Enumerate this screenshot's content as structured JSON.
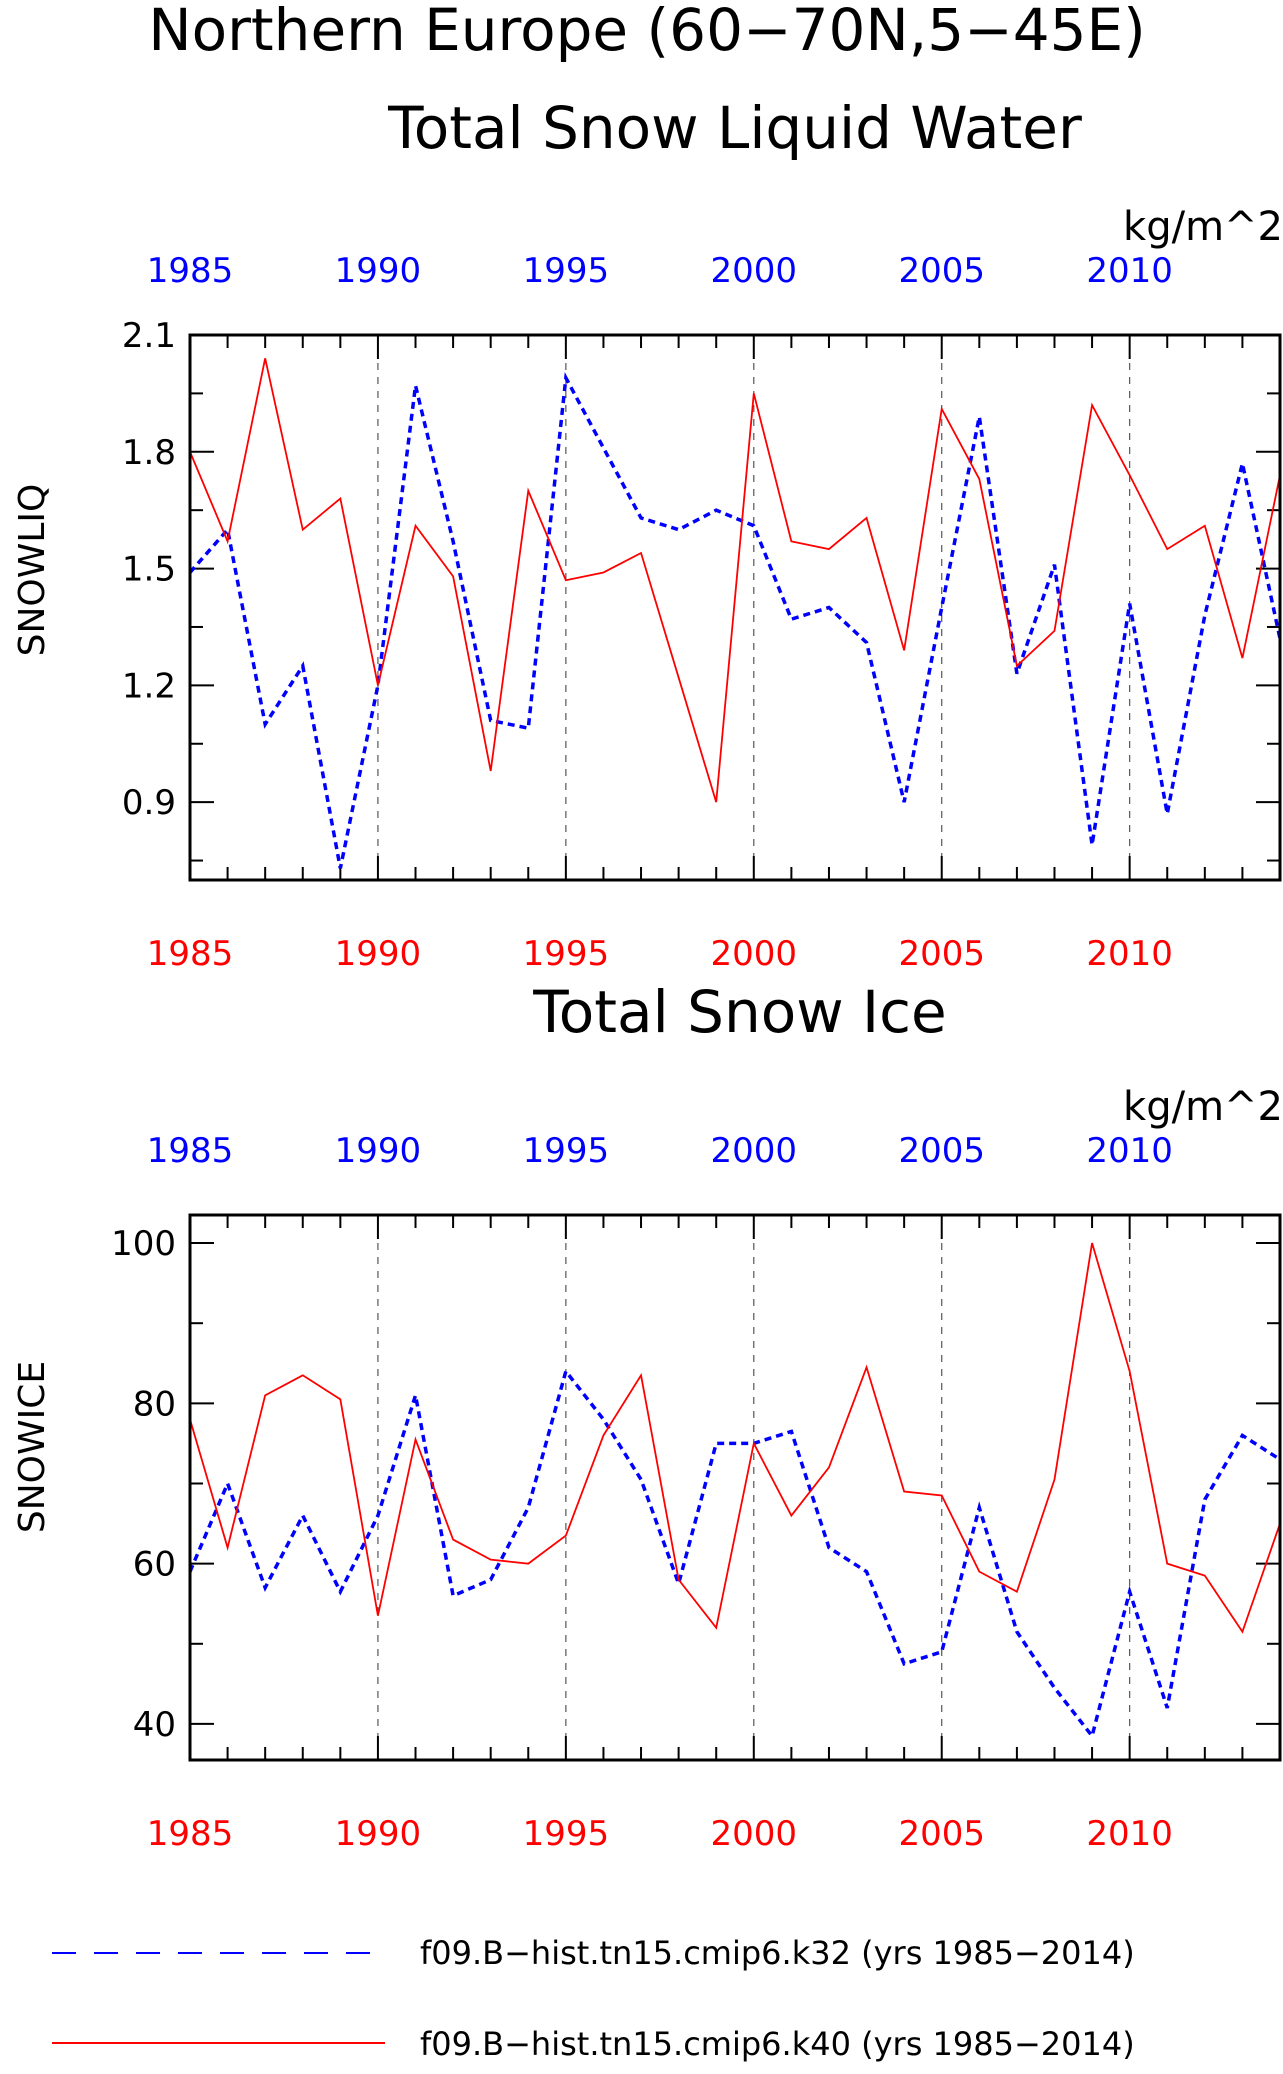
{
  "figure": {
    "title_line1": "Northern Europe (60−70N,5−45E)",
    "title_line2": "Total Snow Liquid Water"
  },
  "legend": [
    {
      "name": "f09.B−hist.tn15.cmip6.k32 (yrs 1985−2014)",
      "color": "#0000ff",
      "style": "dashed"
    },
    {
      "name": "f09.B−hist.tn15.cmip6.k40 (yrs 1985−2014)",
      "color": "#ff0000",
      "style": "solid"
    }
  ],
  "chart_data": [
    {
      "type": "line",
      "title": "",
      "units": "kg/m^2",
      "ylabel": "SNOWLIQ",
      "xlim": [
        1985,
        2014
      ],
      "ylim": [
        0.7,
        2.1
      ],
      "yticks": [
        0.9,
        1.2,
        1.5,
        1.8,
        2.1
      ],
      "yticks_labels": [
        "0.9",
        "1.2",
        "1.5",
        "1.8",
        "2.1"
      ],
      "xticks": [
        1985,
        1990,
        1995,
        2000,
        2005,
        2010
      ],
      "xticks_labels": [
        "1985",
        "1990",
        "1995",
        "2000",
        "2005",
        "2010"
      ],
      "grid": "vertical dashed at labeled years",
      "x": [
        1985,
        1986,
        1987,
        1988,
        1989,
        1990,
        1991,
        1992,
        1993,
        1994,
        1995,
        1996,
        1997,
        1998,
        1999,
        2000,
        2001,
        2002,
        2003,
        2004,
        2005,
        2006,
        2007,
        2008,
        2009,
        2010,
        2011,
        2012,
        2013,
        2014
      ],
      "series": [
        {
          "color": "#0000ff",
          "style": "dashed",
          "values": [
            1.49,
            1.6,
            1.1,
            1.25,
            0.73,
            1.2,
            1.97,
            1.57,
            1.11,
            1.09,
            1.99,
            1.81,
            1.63,
            1.6,
            1.65,
            1.61,
            1.37,
            1.4,
            1.31,
            0.9,
            1.4,
            1.89,
            1.23,
            1.51,
            0.79,
            1.41,
            0.87,
            1.38,
            1.77,
            1.32
          ]
        },
        {
          "color": "#ff0000",
          "style": "solid",
          "values": [
            1.8,
            1.57,
            2.04,
            1.6,
            1.68,
            1.2,
            1.61,
            1.48,
            0.98,
            1.7,
            1.47,
            1.49,
            1.54,
            1.22,
            0.9,
            1.95,
            1.57,
            1.55,
            1.63,
            1.29,
            1.91,
            1.73,
            1.25,
            1.34,
            1.92,
            1.74,
            1.55,
            1.61,
            1.27,
            1.74
          ]
        }
      ]
    },
    {
      "type": "line",
      "title": "Total Snow Ice",
      "units": "kg/m^2",
      "ylabel": "SNOWICE",
      "xlim": [
        1985,
        2014
      ],
      "ylim": [
        35.5,
        103.5
      ],
      "yticks": [
        40,
        60,
        80,
        100
      ],
      "yticks_labels": [
        "40",
        "60",
        "80",
        "100"
      ],
      "xticks": [
        1985,
        1990,
        1995,
        2000,
        2005,
        2010
      ],
      "xticks_labels": [
        "1985",
        "1990",
        "1995",
        "2000",
        "2005",
        "2010"
      ],
      "grid": "vertical dashed at labeled years",
      "x": [
        1985,
        1986,
        1987,
        1988,
        1989,
        1990,
        1991,
        1992,
        1993,
        1994,
        1995,
        1996,
        1997,
        1998,
        1999,
        2000,
        2001,
        2002,
        2003,
        2004,
        2005,
        2006,
        2007,
        2008,
        2009,
        2010,
        2011,
        2012,
        2013,
        2014
      ],
      "series": [
        {
          "color": "#0000ff",
          "style": "dashed",
          "values": [
            59,
            70,
            57,
            66,
            56.5,
            66,
            81,
            56,
            58,
            67,
            84,
            78,
            70.5,
            57.5,
            75,
            75,
            76.5,
            62,
            59,
            47.5,
            49,
            67,
            51.5,
            44.5,
            38.5,
            56.5,
            42,
            68,
            76,
            73
          ]
        },
        {
          "color": "#ff0000",
          "style": "solid",
          "values": [
            78,
            62,
            81,
            83.5,
            80.5,
            53.5,
            75.5,
            63,
            60.5,
            60,
            63.5,
            76,
            83.5,
            58,
            52,
            75,
            66,
            72,
            84.5,
            69,
            68.5,
            59,
            56.5,
            70.5,
            100,
            84,
            60,
            58.5,
            51.5,
            65
          ]
        }
      ]
    }
  ]
}
